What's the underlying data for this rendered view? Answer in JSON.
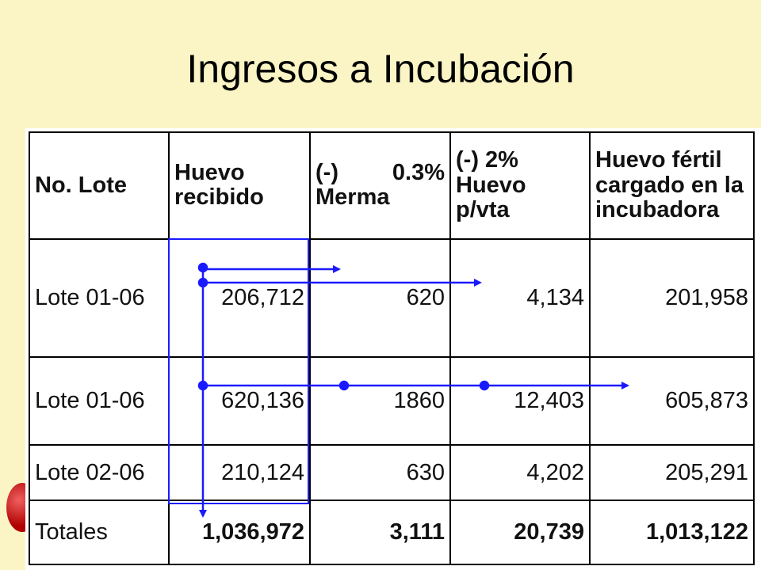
{
  "slide": {
    "title": "Ingresos a Incubación"
  },
  "table": {
    "headers": {
      "lote": "No. Lote",
      "huevo_line1": "Huevo",
      "huevo_line2": "recibido",
      "merma_a": "(-)",
      "merma_b": "0.3%",
      "merma_line2": "Merma",
      "vta_line1": "(-) 2%",
      "vta_line2": "Huevo p/vta",
      "fertil_line1": "Huevo fértil",
      "fertil_line2": "cargado en la",
      "fertil_line3": "incubadora"
    },
    "rows": [
      {
        "lote": "Lote 01-06",
        "huevo": "206,712",
        "merma": "620",
        "vta": "4,134",
        "fertil": "201,958"
      },
      {
        "lote": "Lote 01-06",
        "huevo": "620,136",
        "merma": "1860",
        "vta": "12,403",
        "fertil": "605,873"
      },
      {
        "lote": "Lote 02-06",
        "huevo": "210,124",
        "merma": "630",
        "vta": "4,202",
        "fertil": "205,291"
      }
    ],
    "totals": {
      "lote": "Totales",
      "huevo": "1,036,972",
      "merma": "3,111",
      "vta": "20,739",
      "fertil": "1,013,122"
    }
  },
  "colors": {
    "background": "#fbf5c6",
    "annotation": "#1a1aff"
  }
}
